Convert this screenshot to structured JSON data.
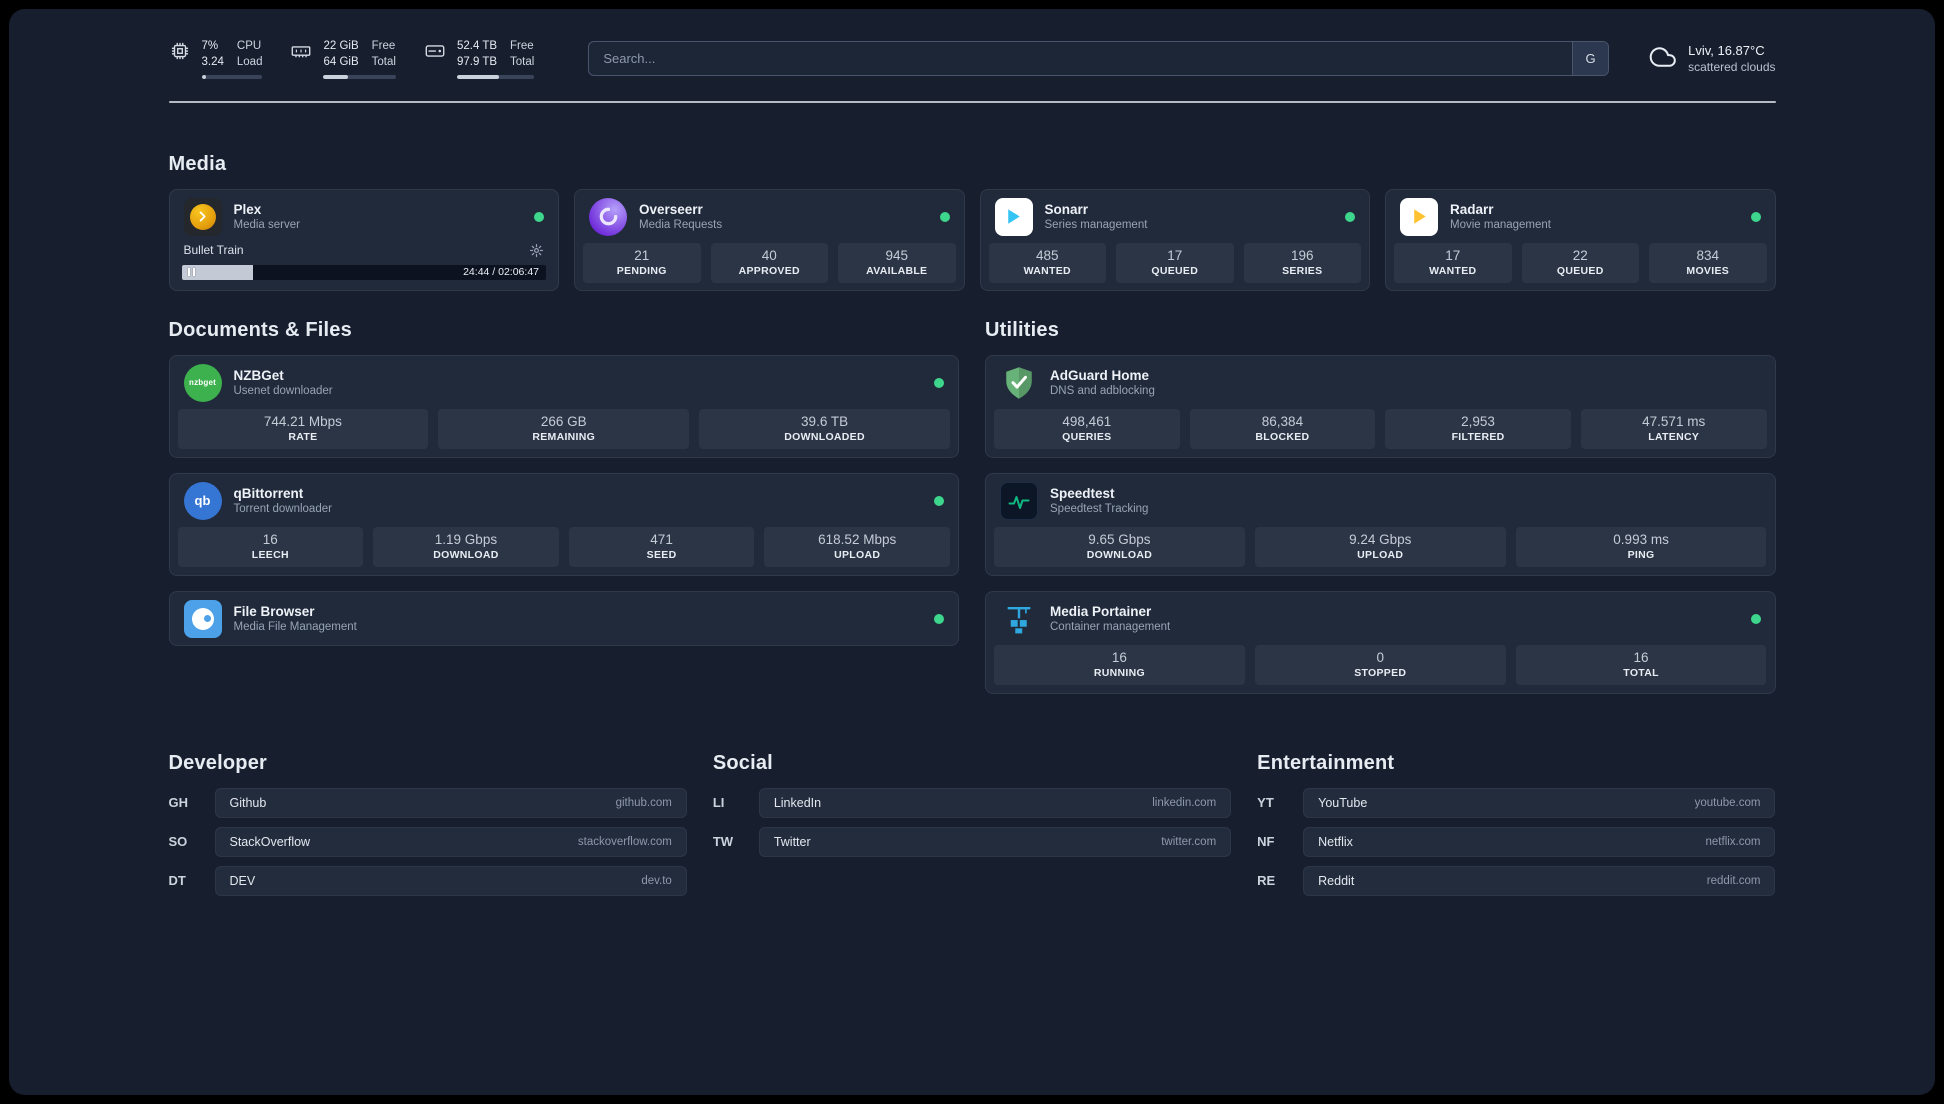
{
  "colors": {
    "status-online": "#3dd68c",
    "accent-bar": "#c9d1dd",
    "plex": "#e5a00d",
    "overseerr": "#7c4dea",
    "sonarr": "#35c5f4",
    "radarr": "#ffc230",
    "nzbget": "#3db14d",
    "qbittorrent": "#3575d3",
    "filebrowser": "#4da1e8",
    "adguard": "#67b279",
    "speedtest": "#10b981",
    "portainer": "#2fa8e0"
  },
  "topbar": {
    "cpu": {
      "percent": "7%",
      "load": "3.24",
      "label_top": "CPU",
      "label_bottom": "Load",
      "progress_percent": 7
    },
    "ram": {
      "free": "22 GiB",
      "total": "64 GiB",
      "label_top": "Free",
      "label_bottom": "Total",
      "progress_percent": 34
    },
    "disk": {
      "free": "52.4 TB",
      "total": "97.9 TB",
      "label_top": "Free",
      "label_bottom": "Total",
      "progress_percent": 54
    },
    "search": {
      "placeholder": "Search...",
      "button": "G"
    },
    "weather": {
      "location": "Lviv, 16.87°C",
      "condition": "scattered clouds"
    }
  },
  "groups": {
    "media": {
      "title": "Media",
      "layout": "grid4",
      "cards": [
        {
          "id": "plex",
          "icon": "plex",
          "name": "Plex",
          "description": "Media server",
          "online": true,
          "now_playing": {
            "title": "Bullet Train",
            "time": "24:44 / 02:06:47",
            "progress_percent": 19.5
          }
        },
        {
          "id": "overseerr",
          "icon": "overseerr",
          "name": "Overseerr",
          "description": "Media Requests",
          "online": true,
          "stats": [
            {
              "value": "21",
              "label": "PENDING"
            },
            {
              "value": "40",
              "label": "APPROVED"
            },
            {
              "value": "945",
              "label": "AVAILABLE"
            }
          ]
        },
        {
          "id": "sonarr",
          "icon": "sonarr",
          "name": "Sonarr",
          "description": "Series management",
          "online": true,
          "stats": [
            {
              "value": "485",
              "label": "WANTED"
            },
            {
              "value": "17",
              "label": "QUEUED"
            },
            {
              "value": "196",
              "label": "SERIES"
            }
          ]
        },
        {
          "id": "radarr",
          "icon": "radarr",
          "name": "Radarr",
          "description": "Movie management",
          "online": true,
          "stats": [
            {
              "value": "17",
              "label": "WANTED"
            },
            {
              "value": "22",
              "label": "QUEUED"
            },
            {
              "value": "834",
              "label": "MOVIES"
            }
          ]
        }
      ]
    },
    "documents": {
      "title": "Documents & Files",
      "layout": "stack",
      "cards": [
        {
          "id": "nzbget",
          "icon": "nzbget",
          "name": "NZBGet",
          "description": "Usenet downloader",
          "online": true,
          "stats": [
            {
              "value": "744.21 Mbps",
              "label": "RATE"
            },
            {
              "value": "266 GB",
              "label": "REMAINING"
            },
            {
              "value": "39.6 TB",
              "label": "DOWNLOADED"
            }
          ]
        },
        {
          "id": "qbittorrent",
          "icon": "qbittorrent",
          "name": "qBittorrent",
          "description": "Torrent downloader",
          "online": true,
          "stats": [
            {
              "value": "16",
              "label": "LEECH"
            },
            {
              "value": "1.19 Gbps",
              "label": "DOWNLOAD"
            },
            {
              "value": "471",
              "label": "SEED"
            },
            {
              "value": "618.52 Mbps",
              "label": "UPLOAD"
            }
          ]
        },
        {
          "id": "filebrowser",
          "icon": "filebrowser",
          "name": "File Browser",
          "description": "Media File Management",
          "online": true
        }
      ]
    },
    "utilities": {
      "title": "Utilities",
      "layout": "stack",
      "cards": [
        {
          "id": "adguard",
          "icon": "adguard",
          "name": "AdGuard Home",
          "description": "DNS and adblocking",
          "online": false,
          "stats": [
            {
              "value": "498,461",
              "label": "QUERIES"
            },
            {
              "value": "86,384",
              "label": "BLOCKED"
            },
            {
              "value": "2,953",
              "label": "FILTERED"
            },
            {
              "value": "47.571 ms",
              "label": "LATENCY"
            }
          ]
        },
        {
          "id": "speedtest",
          "icon": "speedtest",
          "name": "Speedtest",
          "description": "Speedtest Tracking",
          "online": false,
          "stats": [
            {
              "value": "9.65 Gbps",
              "label": "DOWNLOAD"
            },
            {
              "value": "9.24 Gbps",
              "label": "UPLOAD"
            },
            {
              "value": "0.993 ms",
              "label": "PING"
            }
          ]
        },
        {
          "id": "portainer",
          "icon": "portainer",
          "name": "Media Portainer",
          "description": "Container management",
          "online": true,
          "stats": [
            {
              "value": "16",
              "label": "RUNNING"
            },
            {
              "value": "0",
              "label": "STOPPED"
            },
            {
              "value": "16",
              "label": "TOTAL"
            }
          ]
        }
      ]
    }
  },
  "bookmarks": [
    {
      "title": "Developer",
      "items": [
        {
          "abbr": "GH",
          "name": "Github",
          "url": "github.com"
        },
        {
          "abbr": "SO",
          "name": "StackOverflow",
          "url": "stackoverflow.com"
        },
        {
          "abbr": "DT",
          "name": "DEV",
          "url": "dev.to"
        }
      ]
    },
    {
      "title": "Social",
      "items": [
        {
          "abbr": "LI",
          "name": "LinkedIn",
          "url": "linkedin.com"
        },
        {
          "abbr": "TW",
          "name": "Twitter",
          "url": "twitter.com"
        }
      ]
    },
    {
      "title": "Entertainment",
      "items": [
        {
          "abbr": "YT",
          "name": "YouTube",
          "url": "youtube.com"
        },
        {
          "abbr": "NF",
          "name": "Netflix",
          "url": "netflix.com"
        },
        {
          "abbr": "RE",
          "name": "Reddit",
          "url": "reddit.com"
        }
      ]
    }
  ]
}
